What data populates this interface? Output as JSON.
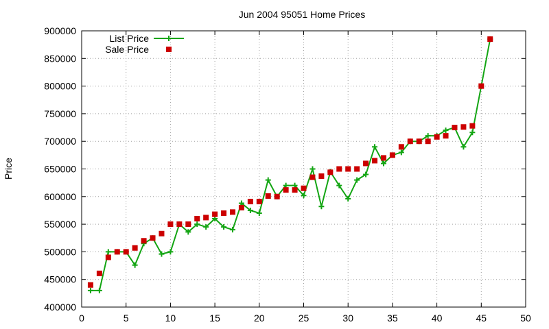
{
  "chart_data": {
    "type": "line",
    "title": "Jun 2004 95051 Home Prices",
    "xlabel": "",
    "ylabel": "Price",
    "xlim": [
      0,
      50
    ],
    "ylim": [
      400000,
      900000
    ],
    "xticks": [
      0,
      5,
      10,
      15,
      20,
      25,
      30,
      35,
      40,
      45,
      50
    ],
    "yticks": [
      400000,
      450000,
      500000,
      550000,
      600000,
      650000,
      700000,
      750000,
      800000,
      850000,
      900000
    ],
    "grid": true,
    "legend_position": "top-left",
    "series": [
      {
        "name": "List Price",
        "style": "line+plus",
        "color": "#13a513",
        "points": [
          [
            1,
            430000
          ],
          [
            2,
            430000
          ],
          [
            3,
            500000
          ],
          [
            4,
            500000
          ],
          [
            5,
            500000
          ],
          [
            6,
            476000
          ],
          [
            7,
            515000
          ],
          [
            8,
            525000
          ],
          [
            9,
            496000
          ],
          [
            10,
            500000
          ],
          [
            11,
            550000
          ],
          [
            12,
            536000
          ],
          [
            13,
            550000
          ],
          [
            14,
            545000
          ],
          [
            15,
            560000
          ],
          [
            16,
            545000
          ],
          [
            17,
            540000
          ],
          [
            18,
            588000
          ],
          [
            19,
            575000
          ],
          [
            20,
            570000
          ],
          [
            21,
            630000
          ],
          [
            22,
            600000
          ],
          [
            23,
            620000
          ],
          [
            24,
            620000
          ],
          [
            25,
            602000
          ],
          [
            26,
            650000
          ],
          [
            27,
            582000
          ],
          [
            28,
            645000
          ],
          [
            29,
            620000
          ],
          [
            30,
            596000
          ],
          [
            31,
            630000
          ],
          [
            32,
            640000
          ],
          [
            33,
            690000
          ],
          [
            34,
            660000
          ],
          [
            35,
            675000
          ],
          [
            36,
            680000
          ],
          [
            37,
            700000
          ],
          [
            38,
            700000
          ],
          [
            39,
            710000
          ],
          [
            40,
            710000
          ],
          [
            41,
            720000
          ],
          [
            42,
            725000
          ],
          [
            43,
            690000
          ],
          [
            44,
            716000
          ],
          [
            45,
            800000
          ],
          [
            46,
            885000
          ]
        ]
      },
      {
        "name": "Sale Price",
        "style": "square",
        "color": "#cc0000",
        "points": [
          [
            1,
            440000
          ],
          [
            2,
            461000
          ],
          [
            3,
            490000
          ],
          [
            4,
            500000
          ],
          [
            5,
            500000
          ],
          [
            6,
            507000
          ],
          [
            7,
            520000
          ],
          [
            8,
            525000
          ],
          [
            9,
            533000
          ],
          [
            10,
            550000
          ],
          [
            11,
            550000
          ],
          [
            12,
            550000
          ],
          [
            13,
            560000
          ],
          [
            14,
            562000
          ],
          [
            15,
            568000
          ],
          [
            16,
            570000
          ],
          [
            17,
            572000
          ],
          [
            18,
            580000
          ],
          [
            19,
            591000
          ],
          [
            20,
            591000
          ],
          [
            21,
            601000
          ],
          [
            22,
            600000
          ],
          [
            23,
            612000
          ],
          [
            24,
            612000
          ],
          [
            25,
            615000
          ],
          [
            26,
            635000
          ],
          [
            27,
            637000
          ],
          [
            28,
            644000
          ],
          [
            29,
            650000
          ],
          [
            30,
            650000
          ],
          [
            31,
            650000
          ],
          [
            32,
            660000
          ],
          [
            33,
            665000
          ],
          [
            34,
            670000
          ],
          [
            35,
            675000
          ],
          [
            36,
            690000
          ],
          [
            37,
            700000
          ],
          [
            38,
            700000
          ],
          [
            39,
            700000
          ],
          [
            40,
            708000
          ],
          [
            41,
            710000
          ],
          [
            42,
            725000
          ],
          [
            43,
            726000
          ],
          [
            44,
            728000
          ],
          [
            45,
            800000
          ],
          [
            46,
            885000
          ]
        ]
      }
    ]
  }
}
